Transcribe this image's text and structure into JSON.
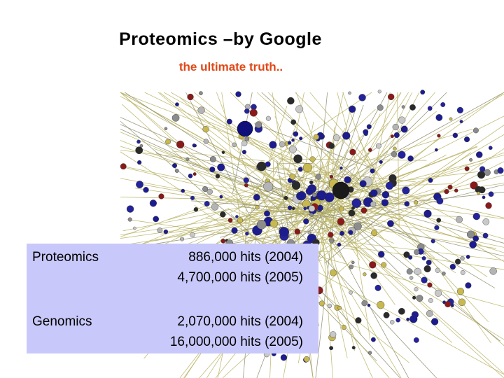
{
  "header": {
    "title": "Proteomics –by Google",
    "subtitle": "the ultimate truth.."
  },
  "table": {
    "rows": [
      {
        "label": "Proteomics",
        "hits": [
          "886,000 hits (2004)",
          "4,700,000 hits (2005)"
        ]
      },
      {
        "label": "Genomics",
        "hits": [
          "2,070,000 hits (2004)",
          "16,000,000 hits (2005)"
        ]
      }
    ]
  }
}
